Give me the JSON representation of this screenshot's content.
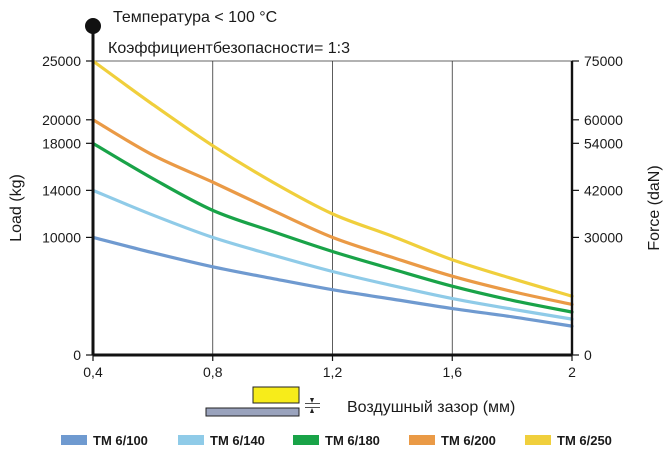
{
  "annotations": {
    "line1": "Температура < 100 °C",
    "line2": "Коэффициентбезопасности= 1:3"
  },
  "gap_label": "Воздушный зазор (мм)",
  "chart_data": {
    "type": "line",
    "xlabel": "",
    "ylabel": "Load (kg)",
    "y2label": "Force (daN)",
    "xlim": [
      0.4,
      2.0
    ],
    "ylim": [
      0,
      25000
    ],
    "y2lim": [
      0,
      75000
    ],
    "grid": true,
    "legend": "bottom",
    "x_ticks": [
      0.4,
      0.8,
      1.2,
      1.6,
      2.0
    ],
    "x_tick_labels": [
      "0,4",
      "0,8",
      "1,2",
      "1,6",
      "2"
    ],
    "y_ticks": [
      0,
      10000,
      14000,
      18000,
      20000,
      25000
    ],
    "y_tick_labels": [
      "0",
      "10000",
      "14000",
      "18000",
      "20000",
      "25000"
    ],
    "y2_ticks": [
      0,
      30000,
      42000,
      54000,
      60000,
      75000
    ],
    "y2_tick_labels": [
      "0",
      "30000",
      "42000",
      "54000",
      "60000",
      "75000"
    ],
    "x": [
      0.4,
      0.6,
      0.8,
      1.0,
      1.2,
      1.4,
      1.6,
      1.8,
      2.0
    ],
    "series": [
      {
        "name": "TM 6/100",
        "color": "#6f9ad0",
        "values": [
          10000,
          8700,
          7500,
          6500,
          5550,
          4750,
          3950,
          3250,
          2450
        ]
      },
      {
        "name": "TM 6/140",
        "color": "#8fcbe8",
        "values": [
          14000,
          11900,
          10000,
          8500,
          7100,
          5900,
          4800,
          3900,
          3050
        ]
      },
      {
        "name": "TM 6/180",
        "color": "#19a348",
        "values": [
          18000,
          15000,
          12300,
          10500,
          8800,
          7300,
          5850,
          4650,
          3650
        ]
      },
      {
        "name": "TM 6/200",
        "color": "#ea9a46",
        "values": [
          20000,
          17000,
          14700,
          12300,
          10000,
          8300,
          6700,
          5400,
          4300
        ]
      },
      {
        "name": "TM 6/250",
        "color": "#f0cf3c",
        "values": [
          25000,
          21300,
          17800,
          14700,
          12000,
          10100,
          8100,
          6500,
          5000
        ]
      }
    ]
  }
}
